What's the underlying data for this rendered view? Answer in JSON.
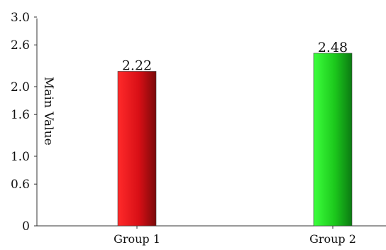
{
  "chart_data": {
    "type": "bar",
    "categories": [
      "Group 1",
      "Group 2"
    ],
    "values": [
      2.22,
      2.48
    ],
    "value_labels": [
      "2.22",
      "2.48"
    ],
    "bar_colors": [
      "#e8141c",
      "#1fd21f"
    ],
    "title": "",
    "xlabel": "",
    "ylabel": "Main Value",
    "y_ticks": [
      0,
      0.6,
      1.0,
      1.6,
      2.0,
      2.6,
      3.0
    ],
    "y_tick_labels": [
      "0",
      "0.6",
      "1.0",
      "1.6",
      "2.0",
      "2.6",
      "3.0"
    ],
    "ylim": [
      0,
      3.0
    ],
    "grid": false,
    "legend": "none"
  }
}
